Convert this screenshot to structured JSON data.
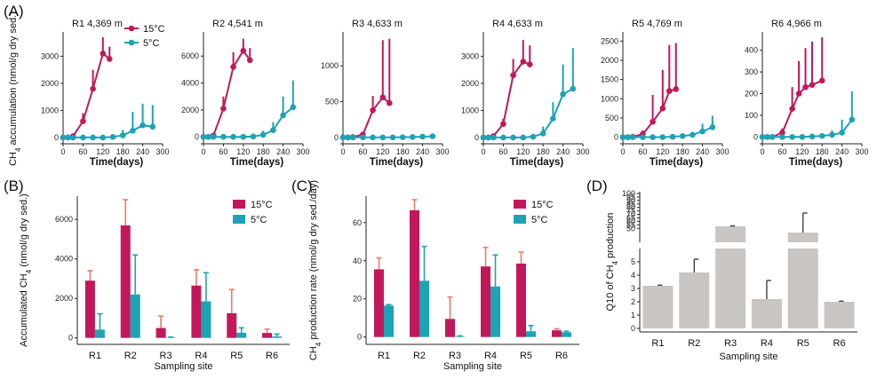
{
  "panel_labels": [
    "(A)",
    "(B)",
    "(C)",
    "(D)"
  ],
  "colors": {
    "c15": "#C2185B",
    "c5": "#1CA3B5",
    "err15": "#F07868",
    "gray": "#C9C5C2"
  },
  "chart_data": [
    {
      "id": "A",
      "type": "line",
      "shared_ylabel": "CH4 accumulation (nmol/g dry sed.)",
      "xlabel": "Time(days)",
      "xlim": [
        0,
        300
      ],
      "xticks": [
        0,
        60,
        120,
        180,
        240,
        300
      ],
      "legend": [
        "15°C",
        "5°C"
      ],
      "legend_location": "inside R1 panel, top-right",
      "panels": [
        {
          "title": "R1 4,369 m",
          "ylim": [
            -100,
            3700
          ],
          "yticks": [
            0,
            1000,
            2000,
            3000
          ],
          "series": [
            {
              "name": "15°C",
              "x": [
                0,
                15,
                30,
                60,
                90,
                120,
                140
              ],
              "y": [
                0,
                0,
                50,
                600,
                1800,
                3100,
                2900
              ],
              "err": [
                0,
                0,
                60,
                300,
                700,
                600,
                450
              ]
            },
            {
              "name": "5°C",
              "x": [
                0,
                15,
                30,
                60,
                90,
                120,
                150,
                180,
                210,
                240,
                270
              ],
              "y": [
                0,
                0,
                0,
                0,
                0,
                0,
                20,
                80,
                250,
                450,
                400
              ],
              "err": [
                0,
                0,
                0,
                0,
                0,
                0,
                60,
                200,
                700,
                800,
                800
              ]
            }
          ]
        },
        {
          "title": "R2 4,541 m",
          "ylim": [
            -250,
            7400
          ],
          "yticks": [
            0,
            2000,
            4000,
            6000
          ],
          "series": [
            {
              "name": "15°C",
              "x": [
                0,
                15,
                30,
                60,
                90,
                120,
                140
              ],
              "y": [
                0,
                0,
                100,
                2100,
                5200,
                6400,
                5700
              ],
              "err": [
                0,
                0,
                100,
                900,
                1100,
                900,
                900
              ]
            },
            {
              "name": "5°C",
              "x": [
                0,
                15,
                30,
                60,
                90,
                120,
                150,
                180,
                210,
                240,
                270
              ],
              "y": [
                0,
                0,
                0,
                0,
                0,
                0,
                30,
                150,
                500,
                1600,
                2200
              ],
              "err": [
                0,
                0,
                0,
                0,
                0,
                0,
                80,
                300,
                600,
                1400,
                2000
              ]
            }
          ]
        },
        {
          "title": "R3 4,633 m",
          "ylim": [
            -40,
            1400
          ],
          "yticks": [
            0,
            500,
            1000
          ],
          "series": [
            {
              "name": "15°C",
              "x": [
                0,
                15,
                30,
                60,
                90,
                120,
                140
              ],
              "y": [
                0,
                0,
                5,
                40,
                380,
                560,
                480
              ],
              "err": [
                0,
                0,
                10,
                40,
                200,
                800,
                900
              ]
            },
            {
              "name": "5°C",
              "x": [
                0,
                15,
                30,
                60,
                90,
                120,
                150,
                180,
                210,
                240,
                270
              ],
              "y": [
                0,
                0,
                0,
                0,
                0,
                0,
                0,
                2,
                5,
                10,
                15
              ],
              "err": [
                0,
                0,
                0,
                0,
                0,
                0,
                0,
                5,
                10,
                15,
                20
              ]
            }
          ]
        },
        {
          "title": "R4 4,633 m",
          "ylim": [
            -100,
            3700
          ],
          "yticks": [
            0,
            1000,
            2000,
            3000
          ],
          "series": [
            {
              "name": "15°C",
              "x": [
                0,
                15,
                30,
                60,
                90,
                120,
                140
              ],
              "y": [
                0,
                0,
                50,
                500,
                2300,
                2800,
                2700
              ],
              "err": [
                0,
                0,
                60,
                200,
                600,
                800,
                700
              ]
            },
            {
              "name": "5°C",
              "x": [
                0,
                15,
                30,
                60,
                90,
                120,
                150,
                180,
                210,
                240,
                270
              ],
              "y": [
                0,
                0,
                0,
                0,
                0,
                0,
                30,
                150,
                700,
                1600,
                1800
              ],
              "err": [
                0,
                0,
                0,
                0,
                0,
                0,
                80,
                250,
                600,
                1100,
                1500
              ]
            }
          ]
        },
        {
          "title": "R5 4,769 m",
          "ylim": [
            -80,
            2600
          ],
          "yticks": [
            0,
            500,
            1000,
            1500,
            2000,
            2500
          ],
          "series": [
            {
              "name": "15°C",
              "x": [
                0,
                15,
                30,
                60,
                90,
                120,
                140,
                160
              ],
              "y": [
                0,
                0,
                10,
                80,
                400,
                750,
                1200,
                1250
              ],
              "err": [
                0,
                0,
                20,
                100,
                700,
                1000,
                1200,
                1200
              ]
            },
            {
              "name": "5°C",
              "x": [
                0,
                15,
                30,
                60,
                90,
                120,
                150,
                180,
                210,
                240,
                270
              ],
              "y": [
                0,
                0,
                0,
                0,
                0,
                0,
                10,
                30,
                60,
                150,
                260
              ],
              "err": [
                0,
                0,
                0,
                0,
                0,
                0,
                20,
                40,
                80,
                200,
                300
              ]
            }
          ]
        },
        {
          "title": "R6 4,966 m",
          "ylim": [
            -15,
            460
          ],
          "yticks": [
            0,
            100,
            200,
            300,
            400
          ],
          "series": [
            {
              "name": "15°C",
              "x": [
                0,
                15,
                30,
                60,
                90,
                110,
                130,
                150,
                180
              ],
              "y": [
                0,
                0,
                0,
                20,
                130,
                200,
                230,
                240,
                260
              ],
              "err": [
                0,
                0,
                0,
                20,
                100,
                150,
                180,
                200,
                200
              ]
            },
            {
              "name": "5°C",
              "x": [
                0,
                15,
                30,
                60,
                90,
                120,
                150,
                180,
                210,
                240,
                270
              ],
              "y": [
                0,
                0,
                0,
                0,
                0,
                0,
                2,
                5,
                10,
                20,
                80
              ],
              "err": [
                0,
                0,
                0,
                0,
                0,
                0,
                5,
                10,
                20,
                60,
                130
              ]
            }
          ]
        }
      ]
    },
    {
      "id": "B",
      "type": "bar",
      "ylabel": "Accumulated CH4 (nmol/g dry sed.)",
      "xlabel": "Sampling site",
      "categories": [
        "R1",
        "R2",
        "R3",
        "R4",
        "R5",
        "R6"
      ],
      "ylim": [
        -150,
        7000
      ],
      "yticks": [
        0,
        2000,
        4000,
        6000
      ],
      "legend": [
        "15°C",
        "5°C"
      ],
      "series": [
        {
          "name": "15°C",
          "values": [
            2900,
            5700,
            500,
            2650,
            1250,
            250
          ],
          "err": [
            500,
            1300,
            600,
            800,
            1200,
            200
          ]
        },
        {
          "name": "5°C",
          "values": [
            420,
            2200,
            20,
            1850,
            260,
            70
          ],
          "err": [
            800,
            2000,
            20,
            1450,
            250,
            120
          ]
        }
      ]
    },
    {
      "id": "C",
      "type": "bar",
      "ylabel": "CH4 production rate (nmol/g dry sed./day)",
      "xlabel": "Sampling site",
      "categories": [
        "R1",
        "R2",
        "R3",
        "R4",
        "R5",
        "R6"
      ],
      "ylim": [
        -2,
        72
      ],
      "yticks": [
        0,
        20,
        40,
        60
      ],
      "legend": [
        "15°C",
        "5°C"
      ],
      "series": [
        {
          "name": "15°C",
          "values": [
            35.5,
            66.5,
            9.5,
            37,
            38.5,
            3.5
          ],
          "err": [
            6,
            5.5,
            11.5,
            10,
            6,
            0.8
          ]
        },
        {
          "name": "5°C",
          "values": [
            16.5,
            29.5,
            0.3,
            26.5,
            3,
            2.5
          ],
          "err": [
            0.5,
            18,
            0.3,
            16.5,
            3,
            0.5
          ]
        }
      ]
    },
    {
      "id": "D",
      "type": "bar",
      "ylabel": "Q10 of CH4 production",
      "xlabel": "Sampling site",
      "categories": [
        "R1",
        "R2",
        "R3",
        "R4",
        "R5",
        "R6"
      ],
      "broken_axis": {
        "lower": [
          0,
          6
        ],
        "upper": [
          30,
          100
        ]
      },
      "yticks_lower": [
        0,
        1,
        2,
        3,
        4,
        5
      ],
      "yticks_upper": [
        50,
        75,
        100
      ],
      "upper_tick_labels": [
        "50",
        "55",
        "60",
        "65",
        "70",
        "75",
        "80",
        "85",
        "90",
        "95",
        "100"
      ],
      "values": [
        3.2,
        4.2,
        53,
        2.2,
        44,
        2.0
      ],
      "err": [
        0.05,
        1.0,
        0.5,
        1.4,
        28,
        0.05
      ]
    }
  ]
}
